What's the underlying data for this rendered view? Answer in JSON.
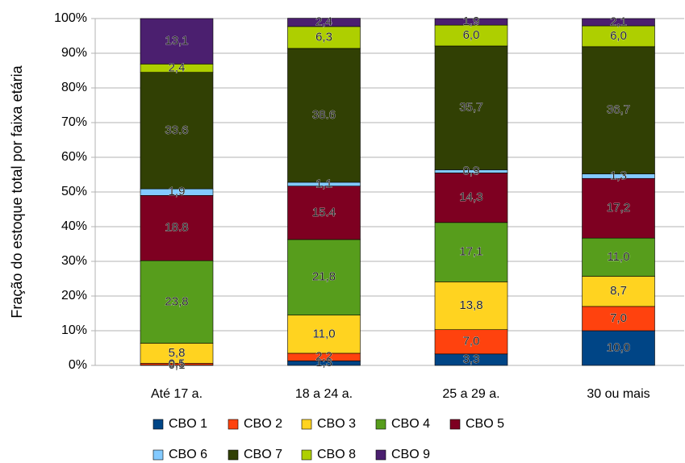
{
  "chart_data": {
    "type": "stacked_bar",
    "y_label": "Fração do estoque total por faixa etária",
    "categories": [
      "Até 17 a.",
      "18 a 24 a.",
      "25 a 29 a.",
      "30 ou mais"
    ],
    "ylim": [
      0,
      100
    ],
    "yticks": [
      {
        "value": 0,
        "label": "0%"
      },
      {
        "value": 10,
        "label": "10%"
      },
      {
        "value": 20,
        "label": "20%"
      },
      {
        "value": 30,
        "label": "30%"
      },
      {
        "value": 40,
        "label": "40%"
      },
      {
        "value": 50,
        "label": "50%"
      },
      {
        "value": 60,
        "label": "60%"
      },
      {
        "value": 70,
        "label": "70%"
      },
      {
        "value": 80,
        "label": "80%"
      },
      {
        "value": 90,
        "label": "90%"
      },
      {
        "value": 100,
        "label": "100%"
      }
    ],
    "grid": true,
    "legend": "bottom",
    "series": [
      {
        "name": "CBO 1",
        "color": "#004586",
        "values": [
          0.1,
          1.3,
          3.3,
          10.0
        ],
        "value_labels": [
          "0,1",
          "1,3",
          "3,3",
          "10,0"
        ]
      },
      {
        "name": "CBO 2",
        "color": "#ff420e",
        "values": [
          0.5,
          2.2,
          7.0,
          7.0
        ],
        "value_labels": [
          "0,5",
          "2,2",
          "7,0",
          "7,0"
        ]
      },
      {
        "name": "CBO 3",
        "color": "#ffd320",
        "values": [
          5.8,
          11.0,
          13.8,
          8.7
        ],
        "value_labels": [
          "5,8",
          "11,0",
          "13,8",
          "8,7"
        ]
      },
      {
        "name": "CBO 4",
        "color": "#579d1c",
        "values": [
          23.8,
          21.8,
          17.1,
          11.0
        ],
        "value_labels": [
          "23,8",
          "21,8",
          "17,1",
          "11,0"
        ]
      },
      {
        "name": "CBO 5",
        "color": "#7e0021",
        "values": [
          18.8,
          15.4,
          14.3,
          17.2
        ],
        "value_labels": [
          "18.8",
          "15.4",
          "14,3",
          "17,2"
        ]
      },
      {
        "name": "CBO 6",
        "color": "#83caff",
        "values": [
          1.9,
          1.1,
          0.9,
          1.3
        ],
        "value_labels": [
          "1,9",
          "1,1",
          "0,9",
          "1,3"
        ]
      },
      {
        "name": "CBO 7",
        "color": "#314004",
        "values": [
          33.6,
          38.6,
          35.7,
          36.7
        ],
        "value_labels": [
          "33.6",
          "38.6",
          "35,7",
          "36,7"
        ]
      },
      {
        "name": "CBO 8",
        "color": "#aecf00",
        "values": [
          2.4,
          6.3,
          6.0,
          6.0
        ],
        "value_labels": [
          "2,4",
          "6,3",
          "6,0",
          "6,0"
        ]
      },
      {
        "name": "CBO 9",
        "color": "#4b1f6f",
        "values": [
          13.1,
          2.4,
          1.9,
          2.1
        ],
        "value_labels": [
          "13,1",
          "2,4",
          "1,9",
          "2,1"
        ]
      }
    ]
  }
}
